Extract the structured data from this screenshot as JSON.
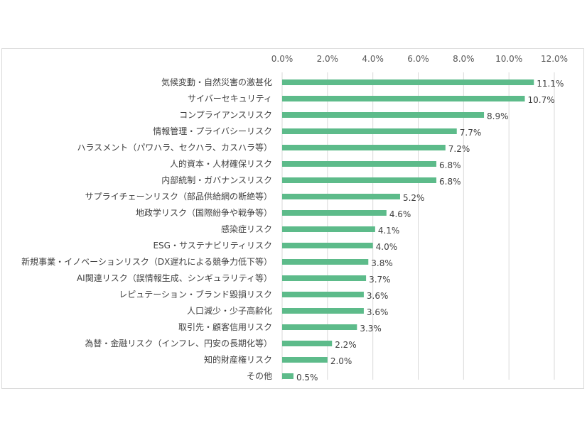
{
  "chart_data": {
    "type": "bar",
    "orientation": "horizontal",
    "categories": [
      "気候変動・自然災害の激甚化",
      "サイバーセキュリティ",
      "コンプライアンスリスク",
      "情報管理・プライバシーリスク",
      "ハラスメント（パワハラ、セクハラ、カスハラ等）",
      "人的資本・人材確保リスク",
      "内部統制・ガバナンスリスク",
      "サプライチェーンリスク（部品供給網の断絶等）",
      "地政学リスク（国際紛争や戦争等）",
      "感染症リスク",
      "ESG・サステナビリティリスク",
      "新規事業・イノベーションリスク（DX遅れによる競争力低下等）",
      "AI関連リスク（誤情報生成、シンギュラリティ等）",
      "レピュテーション・ブランド毀損リスク",
      "人口減少・少子高齢化",
      "取引先・顧客信用リスク",
      "為替・金融リスク（インフレ、円安の長期化等）",
      "知的財産権リスク",
      "その他"
    ],
    "values": [
      11.1,
      10.7,
      8.9,
      7.7,
      7.2,
      6.8,
      6.8,
      5.2,
      4.6,
      4.1,
      4.0,
      3.8,
      3.7,
      3.6,
      3.6,
      3.3,
      2.2,
      2.0,
      0.5
    ],
    "value_labels": [
      "11.1%",
      "10.7%",
      "8.9%",
      "7.7%",
      "7.2%",
      "6.8%",
      "6.8%",
      "5.2%",
      "4.6%",
      "4.1%",
      "4.0%",
      "3.8%",
      "3.7%",
      "3.6%",
      "3.6%",
      "3.3%",
      "2.2%",
      "2.0%",
      "0.5%"
    ],
    "ticks": [
      0,
      2,
      4,
      6,
      8,
      10,
      12
    ],
    "tick_labels": [
      "0.0%",
      "2.0%",
      "4.0%",
      "6.0%",
      "8.0%",
      "10.0%",
      "12.0%"
    ],
    "xlim": [
      0,
      12
    ],
    "x_axis_position": "top",
    "grid": true,
    "legend": false,
    "bar_color": "#5dbb8a",
    "grid_color": "#d9d9d9",
    "title": "",
    "xlabel": "",
    "ylabel": ""
  }
}
